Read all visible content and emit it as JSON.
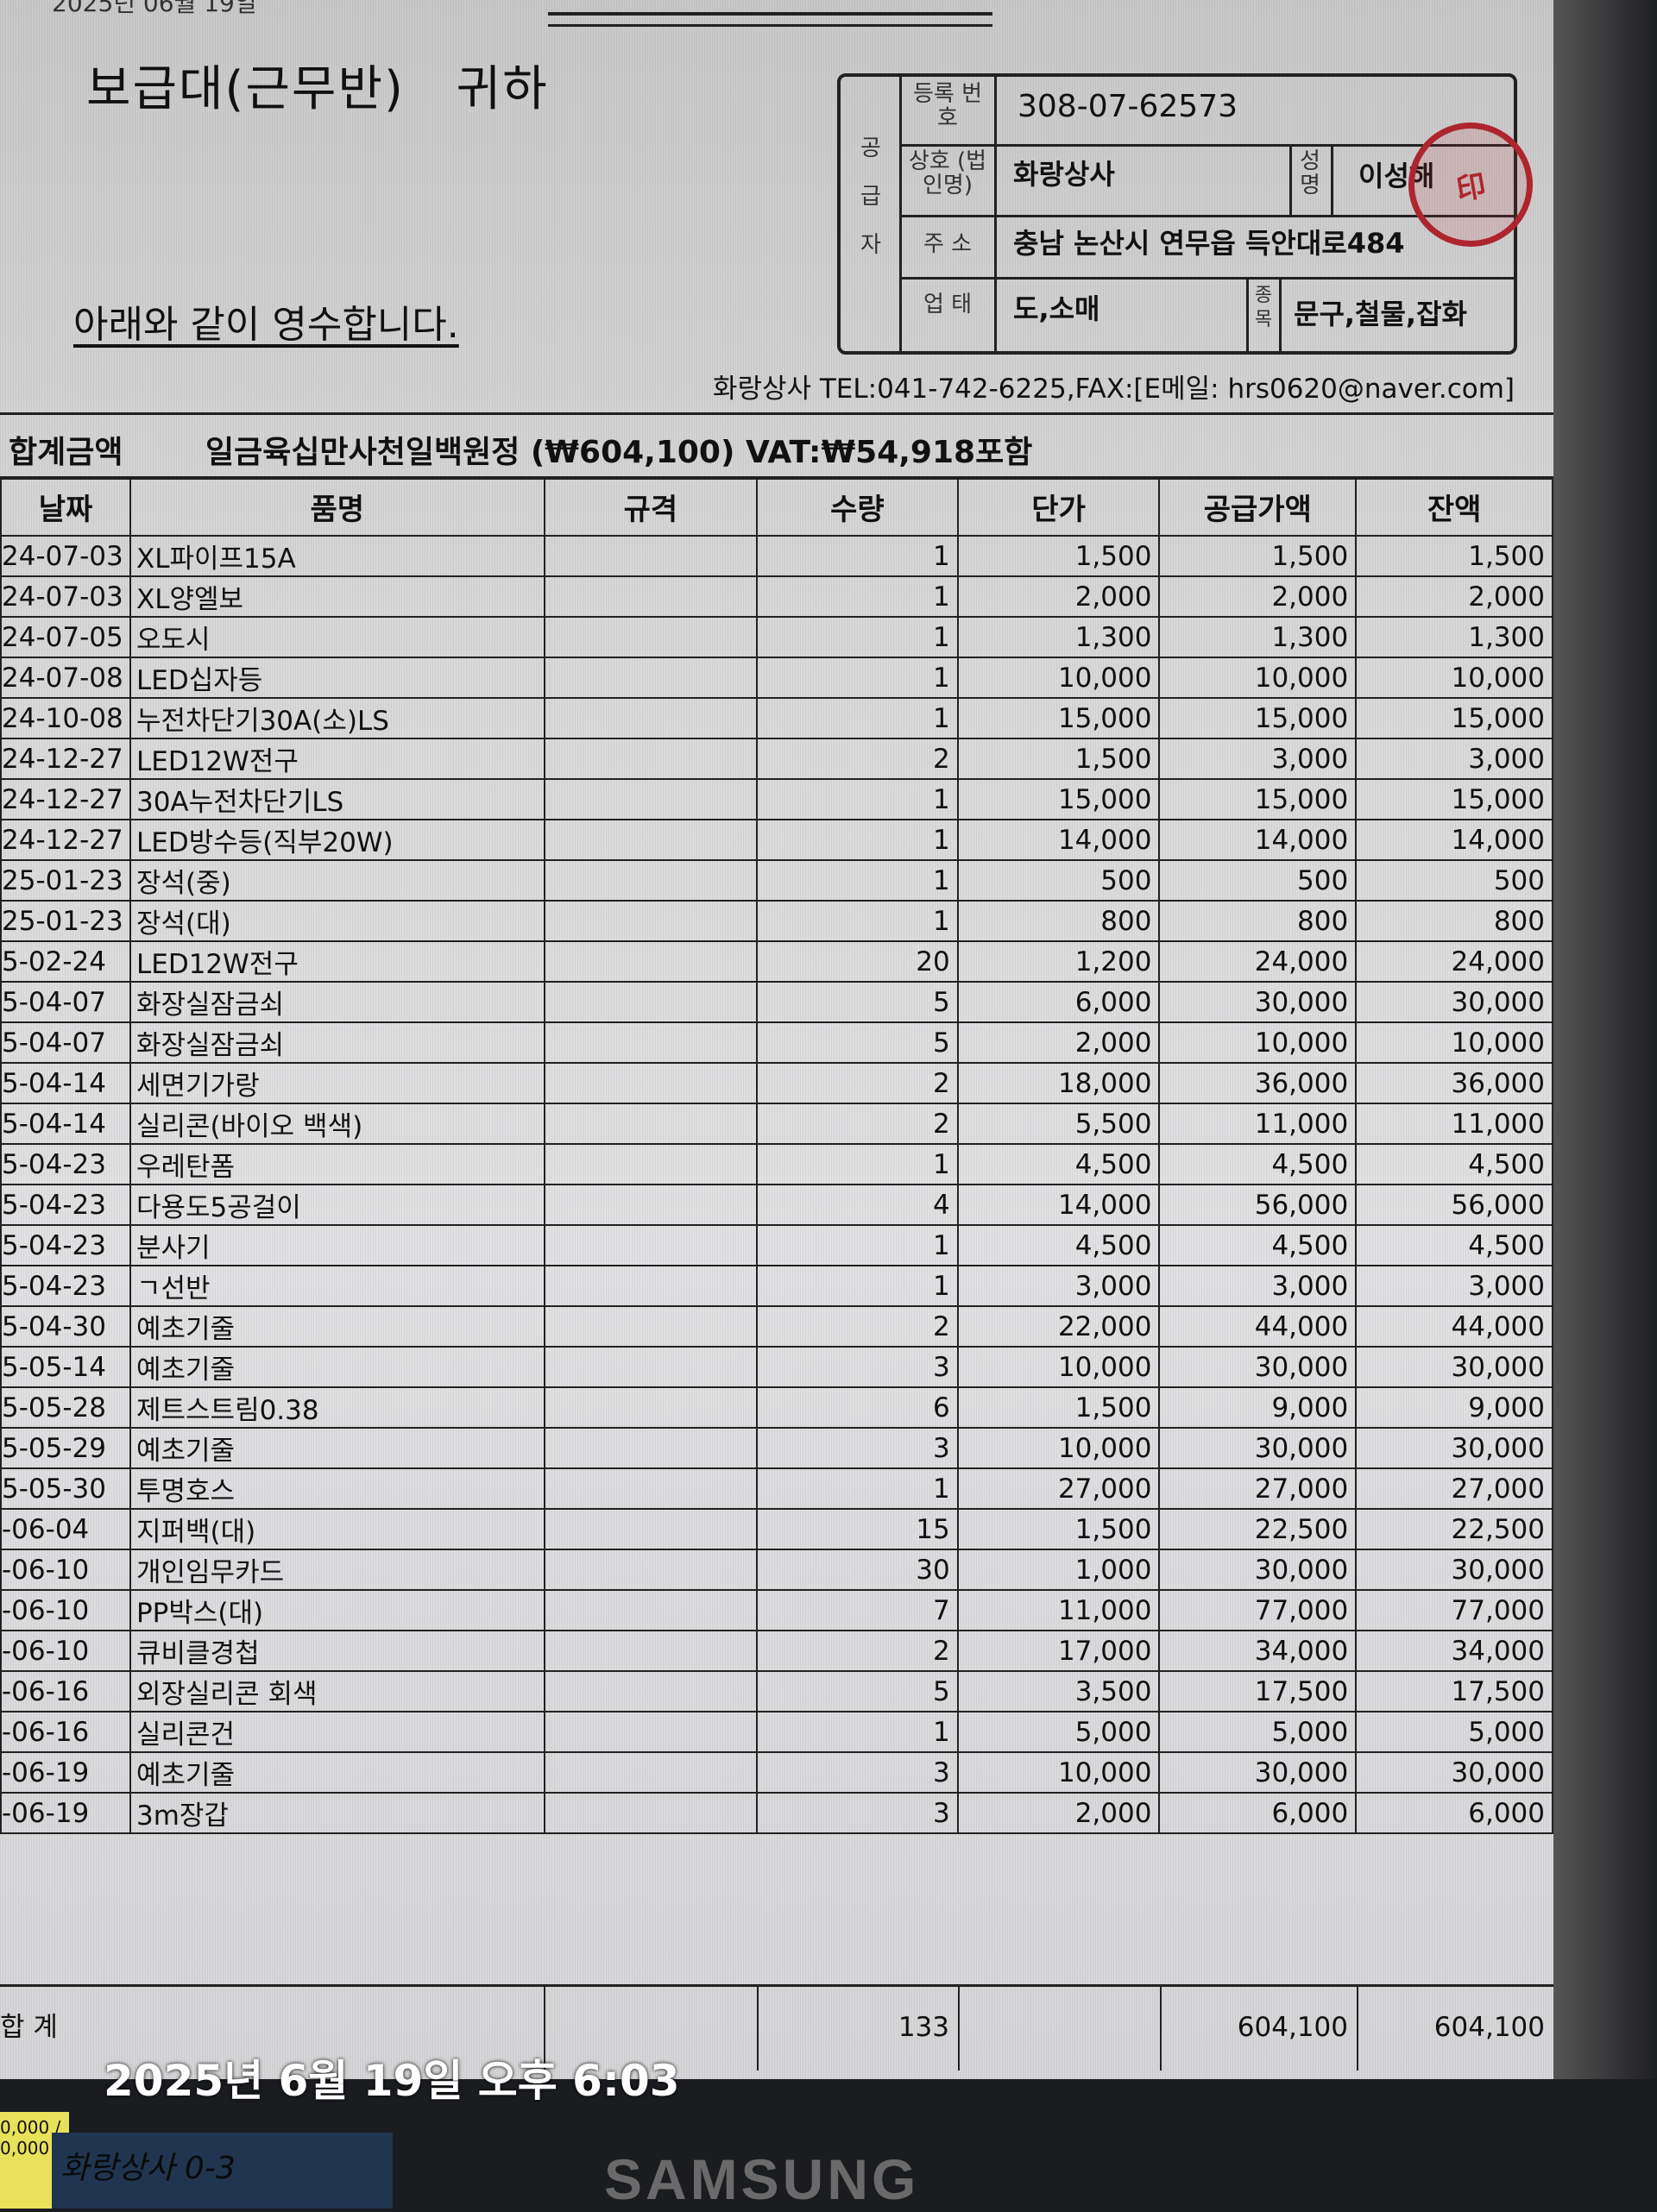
{
  "header": {
    "top_date_fragment": "2025년 06월 19일",
    "recipient": "보급대(근무반)  귀하",
    "received_text": "아래와 같이 영수합니다."
  },
  "supplier": {
    "side_label": "공 급 자",
    "reg_label": "등록 번호",
    "reg_no": "308-07-62573",
    "name_label": "상호 (법인명)",
    "name": "화랑상사",
    "rep_label": "성명",
    "rep": "이성해",
    "stamp_text": "화랑印",
    "addr_label": "주 소",
    "address": "충남 논산시 연무읍 득안대로484",
    "biz_label": "업 태",
    "biz_type": "도,소매",
    "item_label": "종목",
    "items": "문구,철물,잡화",
    "stamp_color": "#b0262f"
  },
  "contact": "화랑상사 TEL:041-742-6225,FAX:[E메일: hrs0620@naver.com]",
  "total": {
    "label": "합계금액",
    "text": "일금육십만사천일백원정 (₩604,100) VAT:₩54,918포함"
  },
  "table": {
    "headers": [
      "날짜",
      "품명",
      "규격",
      "수량",
      "단가",
      "공급가액",
      "잔액"
    ],
    "rows": [
      [
        "24-07-03",
        "XL파이프15A",
        "",
        "1",
        "1,500",
        "1,500",
        "1,500"
      ],
      [
        "24-07-03",
        "XL양엘보",
        "",
        "1",
        "2,000",
        "2,000",
        "2,000"
      ],
      [
        "24-07-05",
        "오도시",
        "",
        "1",
        "1,300",
        "1,300",
        "1,300"
      ],
      [
        "24-07-08",
        "LED십자등",
        "",
        "1",
        "10,000",
        "10,000",
        "10,000"
      ],
      [
        "24-10-08",
        "누전차단기30A(소)LS",
        "",
        "1",
        "15,000",
        "15,000",
        "15,000"
      ],
      [
        "24-12-27",
        "LED12W전구",
        "",
        "2",
        "1,500",
        "3,000",
        "3,000"
      ],
      [
        "24-12-27",
        "30A누전차단기LS",
        "",
        "1",
        "15,000",
        "15,000",
        "15,000"
      ],
      [
        "24-12-27",
        "LED방수등(직부20W)",
        "",
        "1",
        "14,000",
        "14,000",
        "14,000"
      ],
      [
        "25-01-23",
        "장석(중)",
        "",
        "1",
        "500",
        "500",
        "500"
      ],
      [
        "25-01-23",
        "장석(대)",
        "",
        "1",
        "800",
        "800",
        "800"
      ],
      [
        "5-02-24",
        "LED12W전구",
        "",
        "20",
        "1,200",
        "24,000",
        "24,000"
      ],
      [
        "5-04-07",
        "화장실잠금쇠",
        "",
        "5",
        "6,000",
        "30,000",
        "30,000"
      ],
      [
        "5-04-07",
        "화장실잠금쇠",
        "",
        "5",
        "2,000",
        "10,000",
        "10,000"
      ],
      [
        "5-04-14",
        "세면기가랑",
        "",
        "2",
        "18,000",
        "36,000",
        "36,000"
      ],
      [
        "5-04-14",
        "실리콘(바이오 백색)",
        "",
        "2",
        "5,500",
        "11,000",
        "11,000"
      ],
      [
        "5-04-23",
        "우레탄폼",
        "",
        "1",
        "4,500",
        "4,500",
        "4,500"
      ],
      [
        "5-04-23",
        "다용도5공걸이",
        "",
        "4",
        "14,000",
        "56,000",
        "56,000"
      ],
      [
        "5-04-23",
        "분사기",
        "",
        "1",
        "4,500",
        "4,500",
        "4,500"
      ],
      [
        "5-04-23",
        "ㄱ선반",
        "",
        "1",
        "3,000",
        "3,000",
        "3,000"
      ],
      [
        "5-04-30",
        "예초기줄",
        "",
        "2",
        "22,000",
        "44,000",
        "44,000"
      ],
      [
        "5-05-14",
        "예초기줄",
        "",
        "3",
        "10,000",
        "30,000",
        "30,000"
      ],
      [
        "5-05-28",
        "제트스트림0.38",
        "",
        "6",
        "1,500",
        "9,000",
        "9,000"
      ],
      [
        "5-05-29",
        "예초기줄",
        "",
        "3",
        "10,000",
        "30,000",
        "30,000"
      ],
      [
        "5-05-30",
        "투명호스",
        "",
        "1",
        "27,000",
        "27,000",
        "27,000"
      ],
      [
        "-06-04",
        "지퍼백(대)",
        "",
        "15",
        "1,500",
        "22,500",
        "22,500"
      ],
      [
        "-06-10",
        "개인임무카드",
        "",
        "30",
        "1,000",
        "30,000",
        "30,000"
      ],
      [
        "-06-10",
        "PP박스(대)",
        "",
        "7",
        "11,000",
        "77,000",
        "77,000"
      ],
      [
        "-06-10",
        "큐비클경첩",
        "",
        "2",
        "17,000",
        "34,000",
        "34,000"
      ],
      [
        "-06-16",
        "외장실리콘 회색",
        "",
        "5",
        "3,500",
        "17,500",
        "17,500"
      ],
      [
        "-06-16",
        "실리콘건",
        "",
        "1",
        "5,000",
        "5,000",
        "5,000"
      ],
      [
        "-06-19",
        "예초기줄",
        "",
        "3",
        "10,000",
        "30,000",
        "30,000"
      ],
      [
        "-06-19",
        "3m장갑",
        "",
        "3",
        "2,000",
        "6,000",
        "6,000"
      ]
    ]
  },
  "sum": {
    "label": "합  계",
    "qty": "133",
    "supply": "604,100",
    "balance": "604,100"
  },
  "photo": {
    "timestamp": "2025년 6월 19일 오후 6:03",
    "monitor_brand": "SAMSUNG",
    "sticky_note": "0,000 / 0,000",
    "tape_label": "화랑상사 0-3"
  }
}
